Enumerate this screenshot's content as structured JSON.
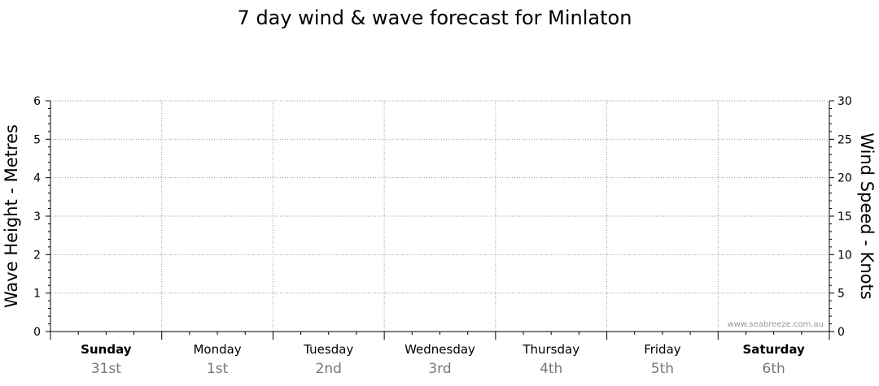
{
  "chart_data": {
    "type": "line",
    "title": "7 day wind & wave forecast for Minlaton",
    "y_left": {
      "label": "Wave Height - Metres",
      "range": [
        0,
        6
      ],
      "ticks": [
        "0",
        "1",
        "2",
        "3",
        "4",
        "5",
        "6"
      ]
    },
    "y_right": {
      "label": "Wind Speed - Knots",
      "range": [
        0,
        30
      ],
      "ticks": [
        "0",
        "5",
        "10",
        "15",
        "20",
        "25",
        "30"
      ]
    },
    "x": {
      "days": [
        {
          "day": "Sunday",
          "date": "31st",
          "bold": true
        },
        {
          "day": "Monday",
          "date": "1st",
          "bold": false
        },
        {
          "day": "Tuesday",
          "date": "2nd",
          "bold": false
        },
        {
          "day": "Wednesday",
          "date": "3rd",
          "bold": false
        },
        {
          "day": "Thursday",
          "date": "4th",
          "bold": false
        },
        {
          "day": "Friday",
          "date": "5th",
          "bold": false
        },
        {
          "day": "Saturday",
          "date": "6th",
          "bold": true
        }
      ]
    },
    "grid": true,
    "series": [],
    "watermark": "www.seabreeze.com.au",
    "colors": {
      "grid": "#999999",
      "axis": "#000000",
      "date_text": "#777777",
      "watermark": "#9a9a9a"
    }
  }
}
